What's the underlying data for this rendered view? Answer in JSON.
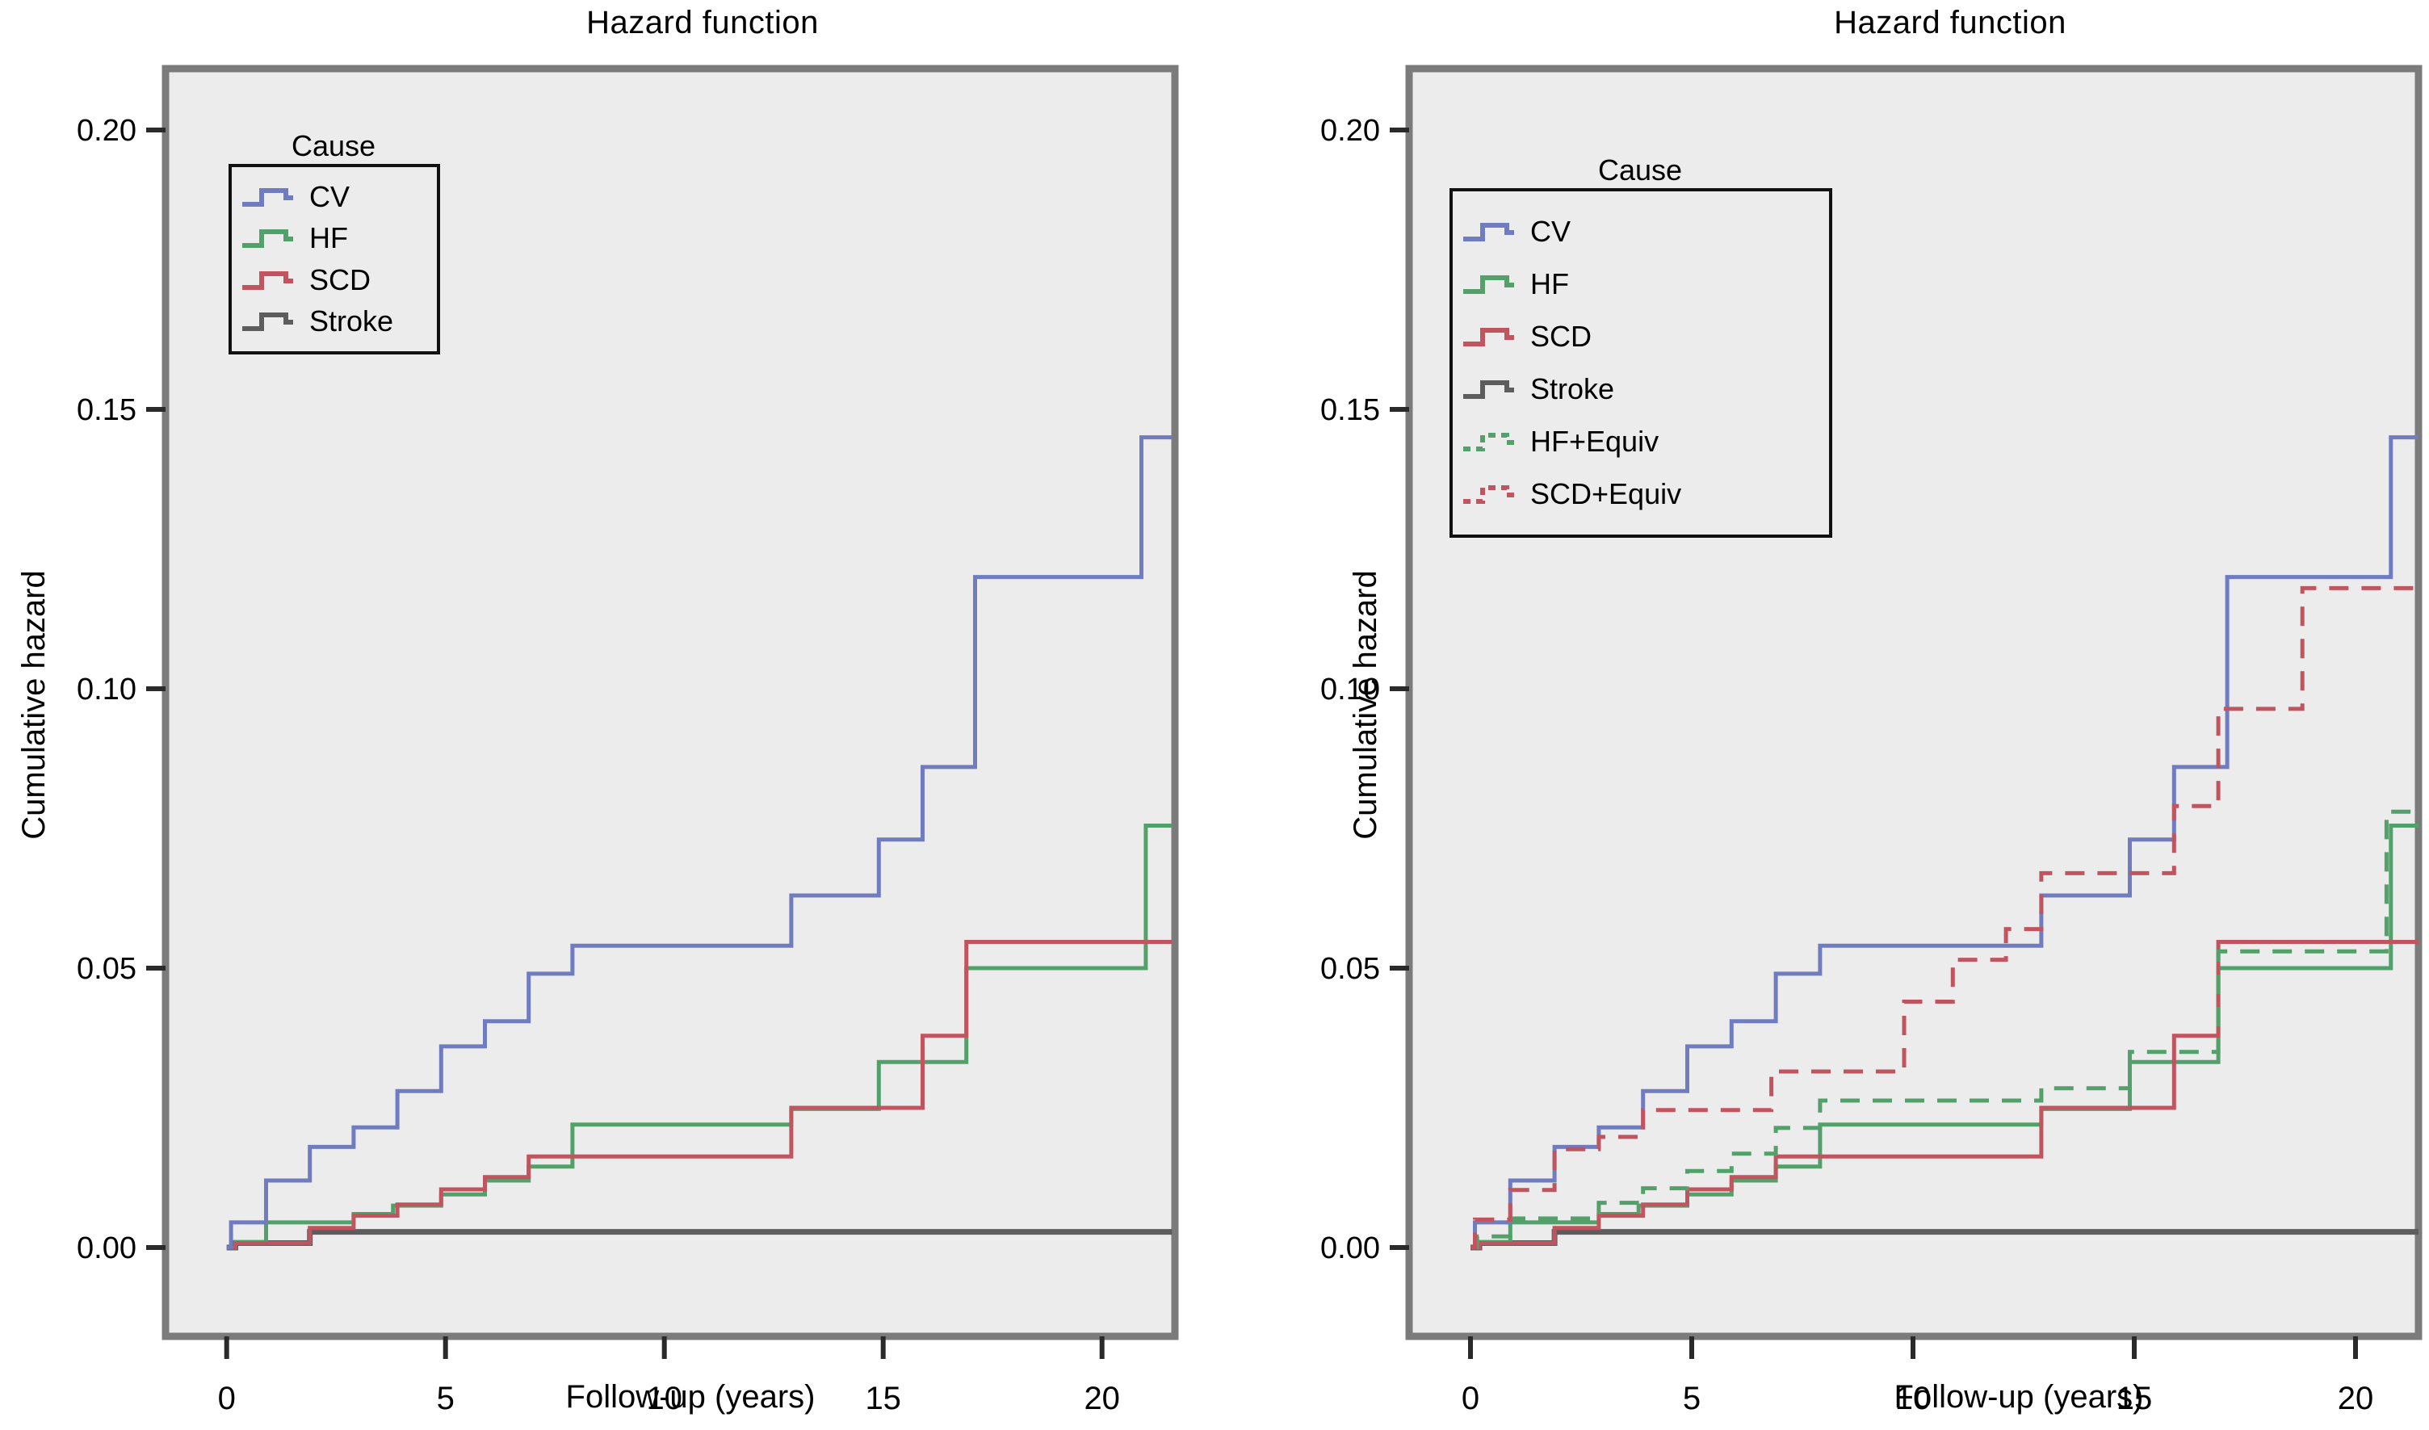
{
  "figure": {
    "background": "#ffffff",
    "panel_fill": "#ececec",
    "panel_frame": "#7b7b7b",
    "tick_color": "#2a2a2a"
  },
  "chart_data": [
    {
      "type": "line",
      "subtype": "step-cumulative-hazard",
      "title": "Hazard function",
      "xlabel": "Follow-up (years)",
      "ylabel": "Cumulative hazard",
      "grid": false,
      "legend_position": "upper-left-inside",
      "legend": {
        "title": "Cause",
        "entries": [
          {
            "label": "CV",
            "color": "#6f7cbf",
            "dashed": false
          },
          {
            "label": "HF",
            "color": "#53a06a",
            "dashed": false
          },
          {
            "label": "SCD",
            "color": "#c05560",
            "dashed": false
          },
          {
            "label": "Stroke",
            "color": "#5d5d5d",
            "dashed": false
          }
        ]
      },
      "x_ticks": [
        {
          "label": "0",
          "value": 0
        },
        {
          "label": "5",
          "value": 5
        },
        {
          "label": "10",
          "value": 10
        },
        {
          "label": "15",
          "value": 15
        },
        {
          "label": "20",
          "value": 20
        }
      ],
      "y_ticks": [
        {
          "label": "0.20",
          "value": 0.2
        },
        {
          "label": "0.15",
          "value": 0.15
        },
        {
          "label": "0.10",
          "value": 0.1
        },
        {
          "label": "0.05",
          "value": 0.05
        },
        {
          "label": "0.00",
          "value": 0.0
        }
      ],
      "xlim": [
        -1.4,
        21.6
      ],
      "ylim": [
        -0.016,
        0.211
      ],
      "x_end": 21.6,
      "series": [
        {
          "name": "Stroke",
          "color": "#5d5d5d",
          "dashed": false,
          "width": 7,
          "points": [
            [
              0,
              0
            ],
            [
              0.2,
              0.0008
            ],
            [
              1.9,
              0.0028
            ]
          ]
        },
        {
          "name": "HF",
          "color": "#53a06a",
          "dashed": false,
          "width": 5,
          "points": [
            [
              0,
              0
            ],
            [
              0.2,
              0.001
            ],
            [
              0.9,
              0.0045
            ],
            [
              2.9,
              0.006
            ],
            [
              3.8,
              0.0075
            ],
            [
              4.9,
              0.0095
            ],
            [
              5.9,
              0.012
            ],
            [
              6.9,
              0.0145
            ],
            [
              7.9,
              0.022
            ],
            [
              12.9,
              0.0248
            ],
            [
              14.9,
              0.0332
            ],
            [
              16.9,
              0.05
            ],
            [
              21.0,
              0.0755
            ]
          ]
        },
        {
          "name": "SCD",
          "color": "#c05560",
          "dashed": false,
          "width": 5,
          "points": [
            [
              0,
              0
            ],
            [
              0.2,
              0.0008
            ],
            [
              1.9,
              0.0035
            ],
            [
              2.9,
              0.0057
            ],
            [
              3.9,
              0.0077
            ],
            [
              4.9,
              0.0104
            ],
            [
              5.9,
              0.0126
            ],
            [
              6.9,
              0.0163
            ],
            [
              12.9,
              0.025
            ],
            [
              15.9,
              0.0379
            ],
            [
              16.9,
              0.0547
            ]
          ]
        },
        {
          "name": "CV",
          "color": "#6f7cbf",
          "dashed": false,
          "width": 5,
          "points": [
            [
              0,
              0
            ],
            [
              0.1,
              0.0045
            ],
            [
              0.9,
              0.012
            ],
            [
              1.9,
              0.018
            ],
            [
              2.9,
              0.0215
            ],
            [
              3.9,
              0.028
            ],
            [
              4.9,
              0.036
            ],
            [
              5.9,
              0.0405
            ],
            [
              6.9,
              0.049
            ],
            [
              7.9,
              0.054
            ],
            [
              12.9,
              0.063
            ],
            [
              14.9,
              0.073
            ],
            [
              15.9,
              0.086
            ],
            [
              17.1,
              0.12
            ],
            [
              20.9,
              0.145
            ]
          ]
        }
      ]
    },
    {
      "type": "line",
      "subtype": "step-cumulative-hazard",
      "title": "Hazard function",
      "xlabel": "Follow-up (years)",
      "ylabel": "Cumulative hazard",
      "grid": false,
      "legend_position": "upper-left-inside",
      "legend": {
        "title": "Cause",
        "entries": [
          {
            "label": "CV",
            "color": "#6f7cbf",
            "dashed": false
          },
          {
            "label": "HF",
            "color": "#53a06a",
            "dashed": false
          },
          {
            "label": "SCD",
            "color": "#c05560",
            "dashed": false
          },
          {
            "label": "Stroke",
            "color": "#5d5d5d",
            "dashed": false
          },
          {
            "label": "HF+Equiv",
            "color": "#53a06a",
            "dashed": true
          },
          {
            "label": "SCD+Equiv",
            "color": "#c05560",
            "dashed": true
          }
        ]
      },
      "x_ticks": [
        {
          "label": "0",
          "value": 0
        },
        {
          "label": "5",
          "value": 5
        },
        {
          "label": "10",
          "value": 10
        },
        {
          "label": "15",
          "value": 15
        },
        {
          "label": "20",
          "value": 20
        }
      ],
      "y_ticks": [
        {
          "label": "0.20",
          "value": 0.2
        },
        {
          "label": "0.15",
          "value": 0.15
        },
        {
          "label": "0.10",
          "value": 0.1
        },
        {
          "label": "0.05",
          "value": 0.05
        },
        {
          "label": "0.00",
          "value": 0.0
        }
      ],
      "xlim": [
        -1.4,
        21.5
      ],
      "ylim": [
        -0.016,
        0.211
      ],
      "x_end": 21.45,
      "series": [
        {
          "name": "Stroke",
          "color": "#5d5d5d",
          "dashed": false,
          "width": 7,
          "points": [
            [
              0,
              0
            ],
            [
              0.2,
              0.0008
            ],
            [
              1.9,
              0.0028
            ]
          ]
        },
        {
          "name": "HF",
          "color": "#53a06a",
          "dashed": false,
          "width": 5,
          "points": [
            [
              0,
              0
            ],
            [
              0.2,
              0.001
            ],
            [
              0.9,
              0.0045
            ],
            [
              2.9,
              0.006
            ],
            [
              3.8,
              0.0075
            ],
            [
              4.9,
              0.0095
            ],
            [
              5.9,
              0.012
            ],
            [
              6.9,
              0.0145
            ],
            [
              7.9,
              0.022
            ],
            [
              12.9,
              0.0248
            ],
            [
              14.9,
              0.0332
            ],
            [
              16.9,
              0.05
            ],
            [
              20.8,
              0.0755
            ]
          ]
        },
        {
          "name": "SCD",
          "color": "#c05560",
          "dashed": false,
          "width": 5,
          "points": [
            [
              0,
              0
            ],
            [
              0.2,
              0.0008
            ],
            [
              1.9,
              0.0035
            ],
            [
              2.9,
              0.0057
            ],
            [
              3.9,
              0.0077
            ],
            [
              4.9,
              0.0104
            ],
            [
              5.9,
              0.0126
            ],
            [
              6.9,
              0.0163
            ],
            [
              12.9,
              0.025
            ],
            [
              15.9,
              0.0379
            ],
            [
              16.9,
              0.0547
            ]
          ]
        },
        {
          "name": "CV",
          "color": "#6f7cbf",
          "dashed": false,
          "width": 5,
          "points": [
            [
              0,
              0
            ],
            [
              0.1,
              0.0045
            ],
            [
              0.9,
              0.012
            ],
            [
              1.9,
              0.018
            ],
            [
              2.9,
              0.0215
            ],
            [
              3.9,
              0.028
            ],
            [
              4.9,
              0.036
            ],
            [
              5.9,
              0.0405
            ],
            [
              6.9,
              0.049
            ],
            [
              7.9,
              0.054
            ],
            [
              12.9,
              0.063
            ],
            [
              14.9,
              0.073
            ],
            [
              15.9,
              0.086
            ],
            [
              17.1,
              0.12
            ],
            [
              20.8,
              0.145
            ]
          ]
        },
        {
          "name": "HF+Equiv",
          "color": "#53a06a",
          "dashed": true,
          "width": 5,
          "points": [
            [
              0,
              0
            ],
            [
              0.15,
              0.002
            ],
            [
              0.9,
              0.0052
            ],
            [
              2.9,
              0.008
            ],
            [
              3.9,
              0.0106
            ],
            [
              4.9,
              0.0137
            ],
            [
              5.9,
              0.0168
            ],
            [
              6.9,
              0.0214
            ],
            [
              7.9,
              0.0263
            ],
            [
              12.9,
              0.0285
            ],
            [
              14.9,
              0.035
            ],
            [
              16.9,
              0.053
            ],
            [
              20.7,
              0.078
            ]
          ]
        },
        {
          "name": "SCD+Equiv",
          "color": "#c05560",
          "dashed": true,
          "width": 5,
          "points": [
            [
              0,
              0
            ],
            [
              0.1,
              0.005
            ],
            [
              0.9,
              0.0103
            ],
            [
              1.9,
              0.0176
            ],
            [
              2.9,
              0.0198
            ],
            [
              3.9,
              0.0246
            ],
            [
              6.8,
              0.0315
            ],
            [
              9.8,
              0.044
            ],
            [
              10.9,
              0.0515
            ],
            [
              12.1,
              0.057
            ],
            [
              12.9,
              0.067
            ],
            [
              15.9,
              0.079
            ],
            [
              16.9,
              0.0964
            ],
            [
              18.8,
              0.118
            ]
          ]
        }
      ]
    }
  ]
}
